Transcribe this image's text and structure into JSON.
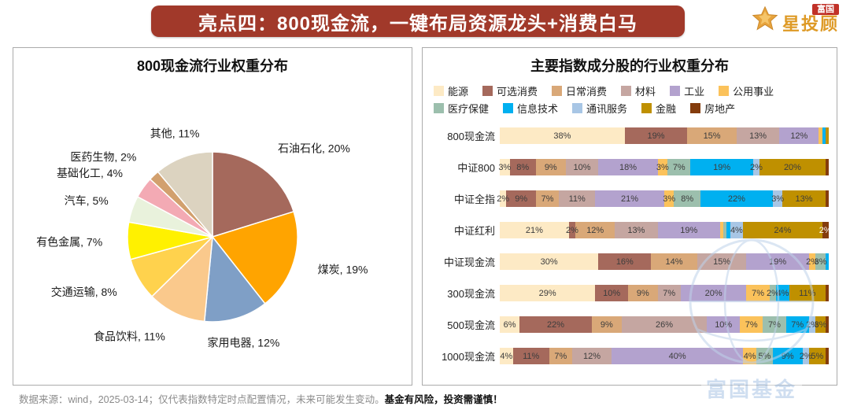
{
  "banner": {
    "title": "亮点四：800现金流，一键布局资源龙头+消费白马"
  },
  "logo": {
    "brand": "富国",
    "product": "星投顾"
  },
  "chart_data": [
    {
      "type": "pie",
      "title": "800现金流行业权重分布",
      "unit": "%",
      "slices": [
        {
          "label": "石油石化",
          "value": 20,
          "color": "#A5695C"
        },
        {
          "label": "煤炭",
          "value": 19,
          "color": "#FFA400"
        },
        {
          "label": "家用电器",
          "value": 12,
          "color": "#7F9FC6"
        },
        {
          "label": "食品饮料",
          "value": 11,
          "color": "#FAC98C"
        },
        {
          "label": "交通运输",
          "value": 8,
          "color": "#FFD24D"
        },
        {
          "label": "有色金属",
          "value": 7,
          "color": "#FFF100"
        },
        {
          "label": "汽车",
          "value": 5,
          "color": "#E9F2DC"
        },
        {
          "label": "基础化工",
          "value": 4,
          "color": "#F3AAB4"
        },
        {
          "label": "医药生物",
          "value": 2,
          "color": "#D2A06E"
        },
        {
          "label": "其他",
          "value": 11,
          "color": "#DCD3C0"
        }
      ]
    },
    {
      "type": "bar",
      "stacked": true,
      "orientation": "horizontal",
      "title": "主要指数成分股的行业权重分布",
      "x_max": 100,
      "legend": [
        {
          "name": "能源",
          "color": "#FDEAC5"
        },
        {
          "name": "可选消费",
          "color": "#A5695C"
        },
        {
          "name": "日常消费",
          "color": "#D9A878"
        },
        {
          "name": "材料",
          "color": "#C5A6A1"
        },
        {
          "name": "工业",
          "color": "#B3A2CE"
        },
        {
          "name": "公用事业",
          "color": "#FBC25B"
        },
        {
          "name": "医疗保健",
          "color": "#9CBFAD"
        },
        {
          "name": "信息技术",
          "color": "#00B0F0"
        },
        {
          "name": "通讯服务",
          "color": "#A8C6E5"
        },
        {
          "name": "金融",
          "color": "#BF9000"
        },
        {
          "name": "房地产",
          "color": "#843C0C"
        }
      ],
      "categories": [
        "800现金流",
        "中证800",
        "中证全指",
        "中证红利",
        "中证现金流",
        "300现金流",
        "500现金流",
        "1000现金流"
      ],
      "rows": [
        {
          "category": "800现金流",
          "values": [
            38,
            19,
            15,
            13,
            12,
            1,
            0,
            1,
            0,
            1,
            0
          ]
        },
        {
          "category": "中证800",
          "values": [
            3,
            8,
            9,
            10,
            18,
            3,
            7,
            19,
            2,
            20,
            1
          ]
        },
        {
          "category": "中证全指",
          "values": [
            2,
            9,
            7,
            11,
            21,
            3,
            8,
            22,
            3,
            13,
            1
          ]
        },
        {
          "category": "中证红利",
          "values": [
            21,
            2,
            12,
            13,
            19,
            1,
            1,
            1,
            4,
            24,
            2
          ]
        },
        {
          "category": "中证现金流",
          "values": [
            30,
            16,
            14,
            15,
            19,
            2,
            3,
            1,
            0,
            0,
            0
          ]
        },
        {
          "category": "300现金流",
          "values": [
            29,
            10,
            9,
            7,
            20,
            7,
            2,
            4,
            0,
            11,
            1
          ]
        },
        {
          "category": "500现金流",
          "values": [
            6,
            22,
            9,
            26,
            10,
            7,
            7,
            7,
            2,
            3,
            1
          ]
        },
        {
          "category": "1000现金流",
          "values": [
            4,
            11,
            7,
            12,
            40,
            4,
            5,
            9,
            2,
            5,
            1
          ]
        }
      ]
    }
  ],
  "footer": {
    "source": "数据来源：wind，2025-03-14；仅代表指数特定时点配置情况，未来可能发生变动。",
    "warning": "基金有风险，投资需谨慎！"
  },
  "watermark": {
    "text": "富国基金"
  }
}
